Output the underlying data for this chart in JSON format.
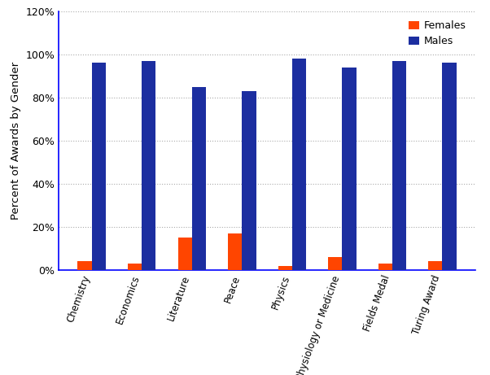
{
  "categories": [
    "Chemistry",
    "Economics",
    "Literature",
    "Peace",
    "Physics",
    "Physiology or Medicine",
    "Fields Medal",
    "Turing Award"
  ],
  "females": [
    4.0,
    3.0,
    15.0,
    17.0,
    2.0,
    6.0,
    3.0,
    4.0
  ],
  "males": [
    96.0,
    97.0,
    85.0,
    83.0,
    98.0,
    94.0,
    97.0,
    96.0
  ],
  "female_color": "#FF4500",
  "male_color": "#1C2EA0",
  "ylabel": "Percent of Awards by Gender",
  "ylim": [
    0,
    120
  ],
  "yticks": [
    0,
    20,
    40,
    60,
    80,
    100,
    120
  ],
  "legend_labels": [
    "Females",
    "Males"
  ],
  "background_color": "#FFFFFF",
  "grid_color": "#AAAAAA",
  "axis_color": "#0000FF",
  "bar_width": 0.28,
  "figsize": [
    6.02,
    4.61
  ],
  "dpi": 100
}
